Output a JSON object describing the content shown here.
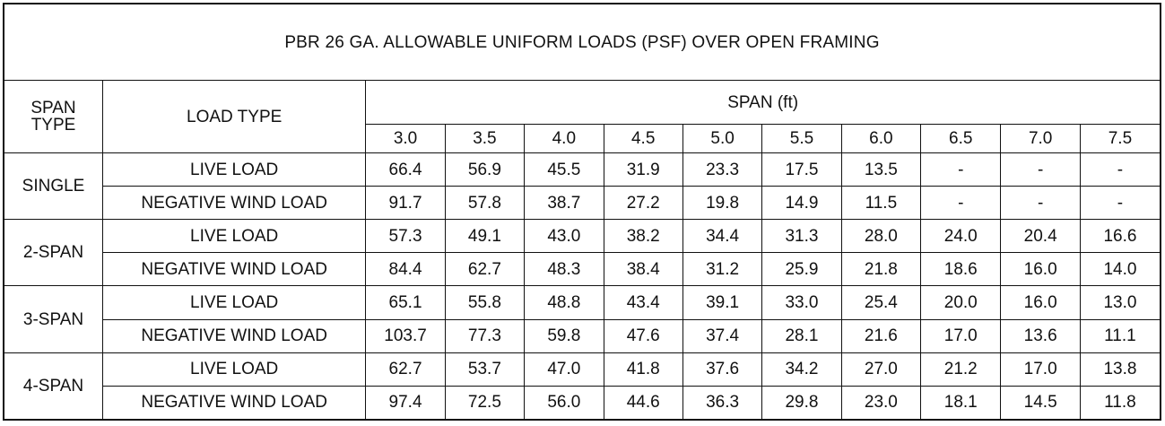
{
  "table": {
    "title": "PBR 26 GA. ALLOWABLE UNIFORM LOADS (PSF) OVER OPEN FRAMING",
    "span_type_header": {
      "line1": "SPAN",
      "line2": "TYPE"
    },
    "load_type_header": "LOAD TYPE",
    "span_group_header": "SPAN (ft)",
    "spans": [
      "3.0",
      "3.5",
      "4.0",
      "4.5",
      "5.0",
      "5.5",
      "6.0",
      "6.5",
      "7.0",
      "7.5"
    ],
    "groups": [
      {
        "span_type": "SINGLE",
        "rows": [
          {
            "load_type": "LIVE LOAD",
            "values": [
              "66.4",
              "56.9",
              "45.5",
              "31.9",
              "23.3",
              "17.5",
              "13.5",
              "-",
              "-",
              "-"
            ]
          },
          {
            "load_type": "NEGATIVE WIND LOAD",
            "values": [
              "91.7",
              "57.8",
              "38.7",
              "27.2",
              "19.8",
              "14.9",
              "11.5",
              "-",
              "-",
              "-"
            ]
          }
        ]
      },
      {
        "span_type": "2-SPAN",
        "rows": [
          {
            "load_type": "LIVE LOAD",
            "values": [
              "57.3",
              "49.1",
              "43.0",
              "38.2",
              "34.4",
              "31.3",
              "28.0",
              "24.0",
              "20.4",
              "16.6"
            ]
          },
          {
            "load_type": "NEGATIVE WIND LOAD",
            "values": [
              "84.4",
              "62.7",
              "48.3",
              "38.4",
              "31.2",
              "25.9",
              "21.8",
              "18.6",
              "16.0",
              "14.0"
            ]
          }
        ]
      },
      {
        "span_type": "3-SPAN",
        "rows": [
          {
            "load_type": "LIVE LOAD",
            "values": [
              "65.1",
              "55.8",
              "48.8",
              "43.4",
              "39.1",
              "33.0",
              "25.4",
              "20.0",
              "16.0",
              "13.0"
            ]
          },
          {
            "load_type": "NEGATIVE WIND LOAD",
            "values": [
              "103.7",
              "77.3",
              "59.8",
              "47.6",
              "37.4",
              "28.1",
              "21.6",
              "17.0",
              "13.6",
              "11.1"
            ]
          }
        ]
      },
      {
        "span_type": "4-SPAN",
        "rows": [
          {
            "load_type": "LIVE LOAD",
            "values": [
              "62.7",
              "53.7",
              "47.0",
              "41.8",
              "37.6",
              "34.2",
              "27.0",
              "21.2",
              "17.0",
              "13.8"
            ]
          },
          {
            "load_type": "NEGATIVE WIND LOAD",
            "values": [
              "97.4",
              "72.5",
              "56.0",
              "44.6",
              "36.3",
              "29.8",
              "23.0",
              "18.1",
              "14.5",
              "11.8"
            ]
          }
        ]
      }
    ]
  }
}
